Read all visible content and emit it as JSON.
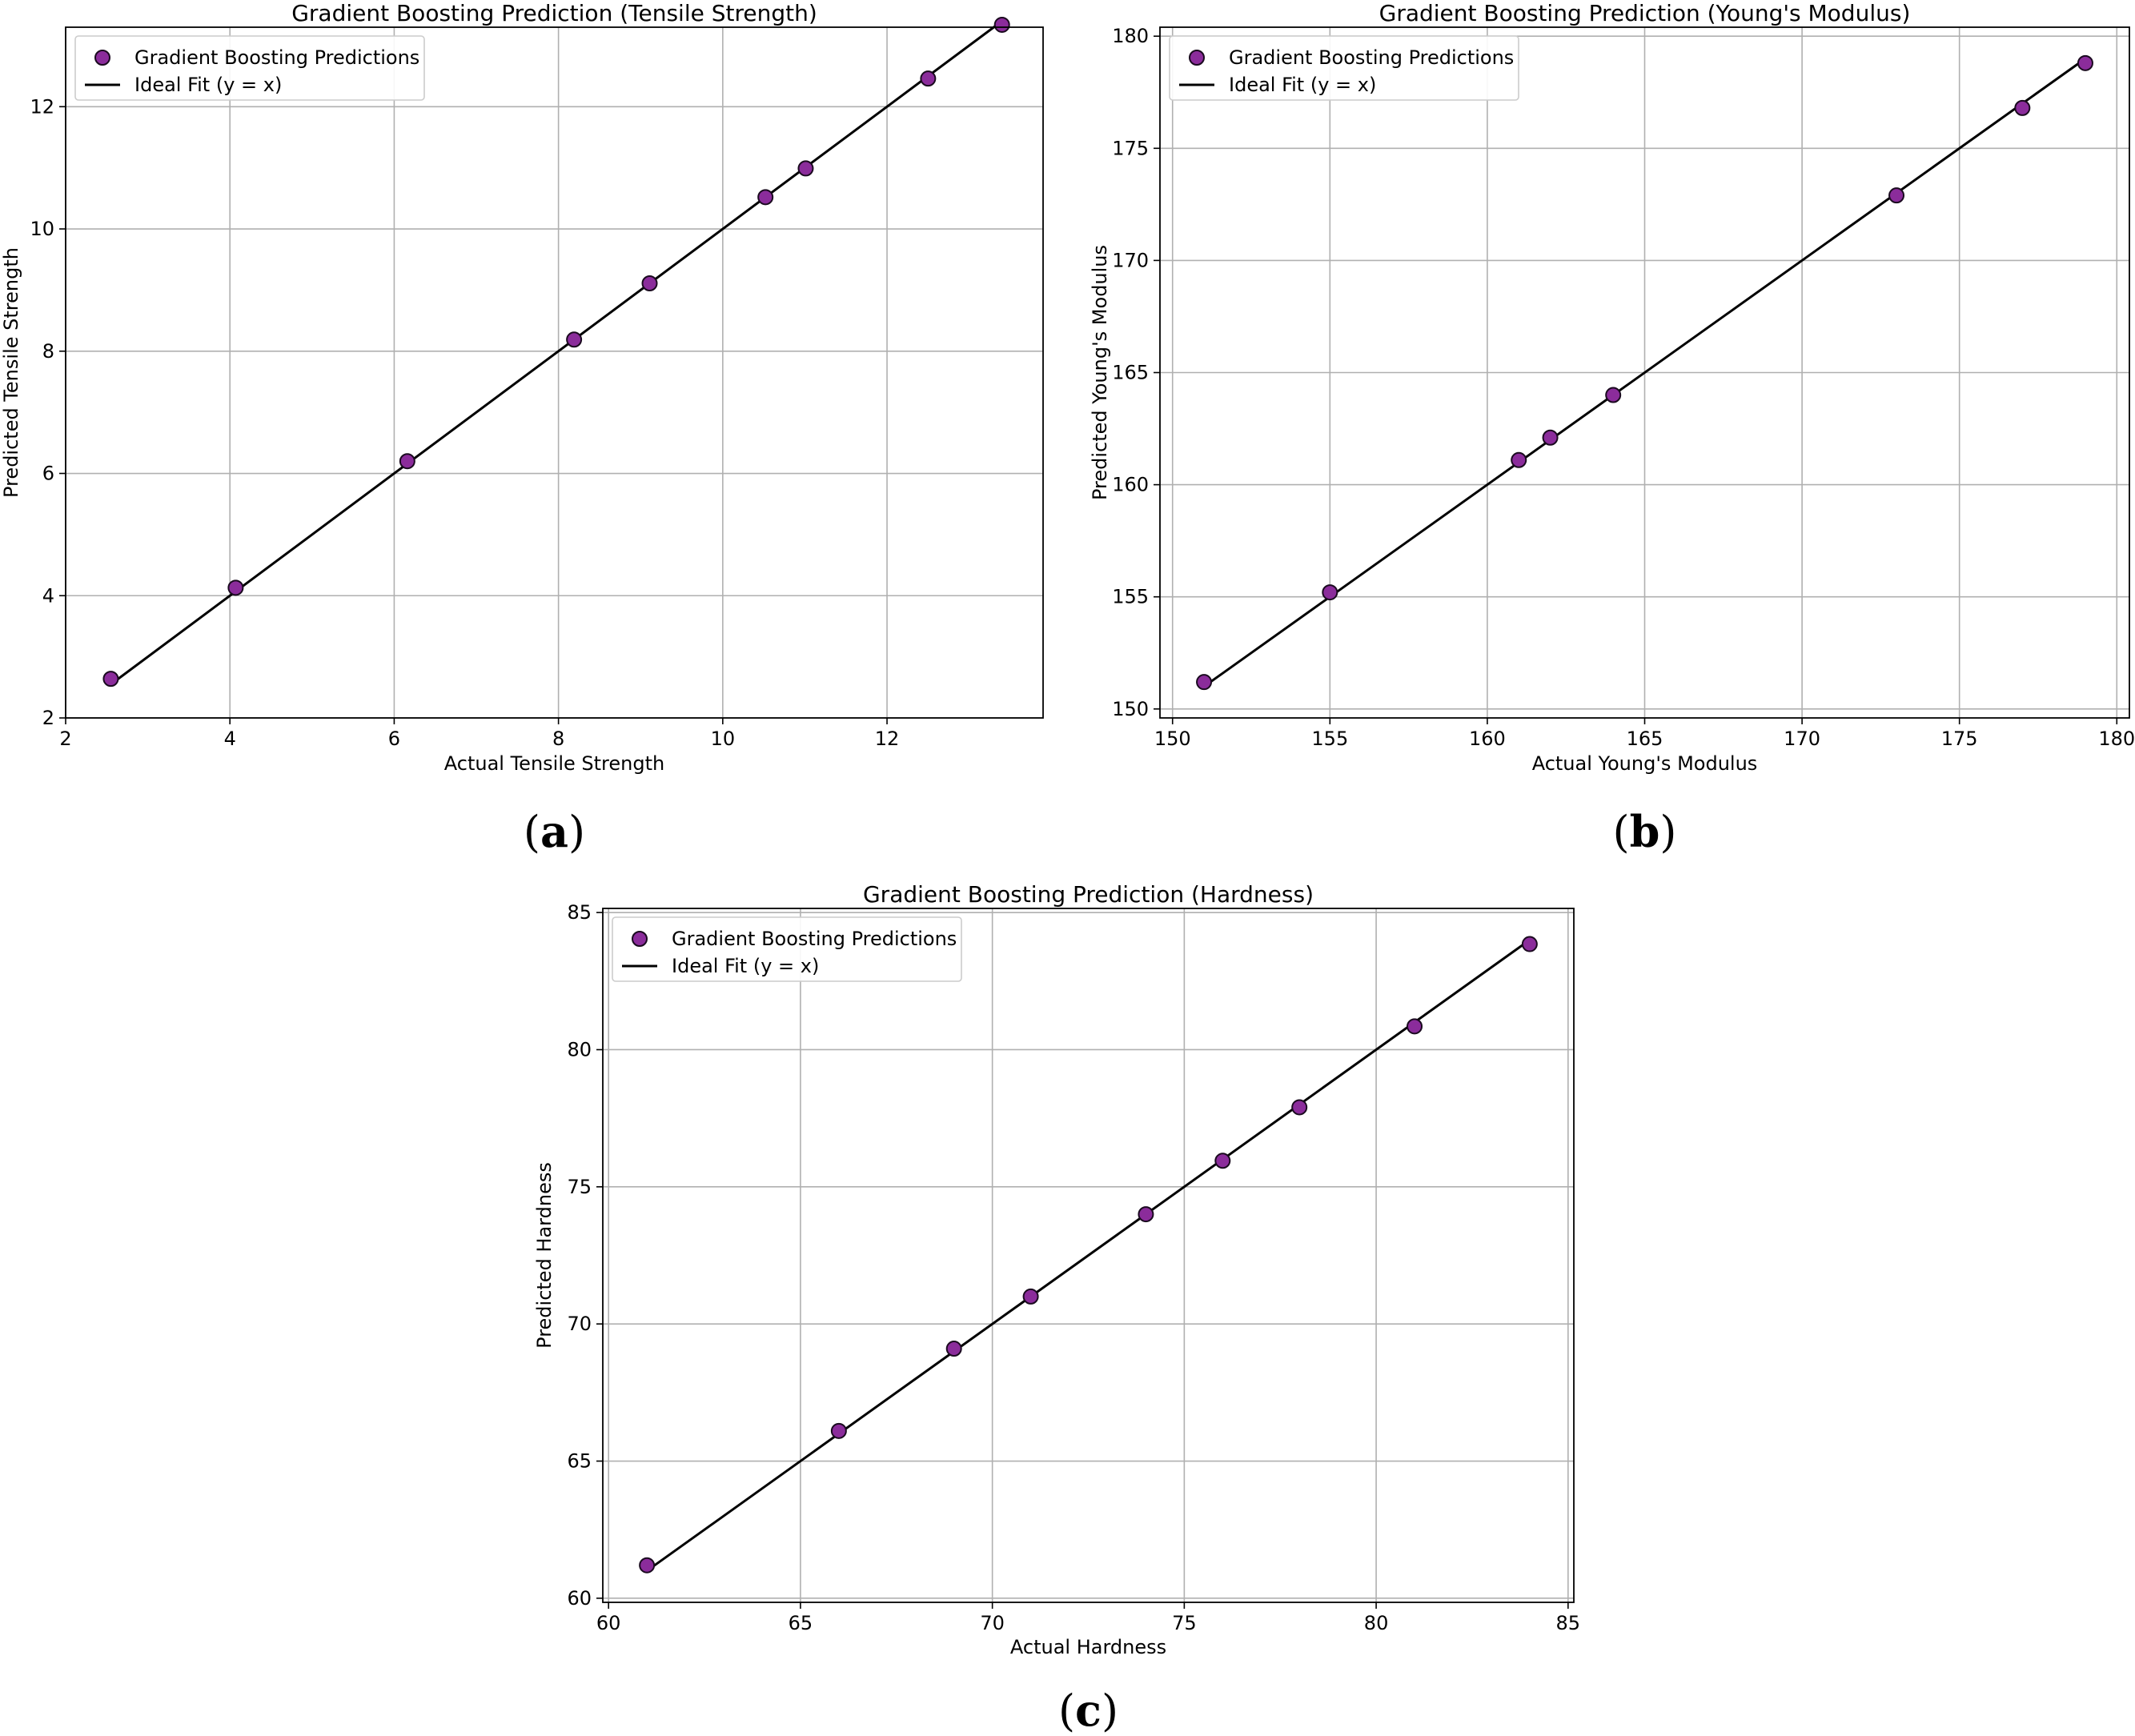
{
  "chart_data": [
    {
      "type": "scatter",
      "panel_label": "a",
      "title": "Gradient Boosting Prediction (Tensile Strength)",
      "xlabel": "Actual Tensile Strength",
      "ylabel": "Predicted Tensile Strength",
      "xlim": [
        2,
        13.9
      ],
      "ylim": [
        2,
        13.3
      ],
      "xticks": [
        2,
        4,
        6,
        8,
        10,
        12
      ],
      "yticks": [
        2,
        4,
        6,
        8,
        10,
        12
      ],
      "grid": true,
      "legend_position": "upper left",
      "series": [
        {
          "name": "Gradient Boosting Predictions",
          "kind": "scatter",
          "x": [
            2.55,
            4.07,
            6.16,
            8.19,
            9.11,
            10.52,
            11.01,
            12.5,
            13.4
          ],
          "y": [
            2.64,
            4.13,
            6.2,
            8.19,
            9.11,
            10.52,
            10.99,
            12.46,
            13.34
          ]
        },
        {
          "name": "Ideal Fit (y = x)",
          "kind": "line",
          "x": [
            2.55,
            13.4
          ],
          "y": [
            2.55,
            13.4
          ]
        }
      ]
    },
    {
      "type": "scatter",
      "panel_label": "b",
      "title": "Gradient Boosting Prediction (Young's Modulus)",
      "xlabel": "Actual Young's Modulus",
      "ylabel": "Predicted Young's Modulus",
      "xlim": [
        149.6,
        180.4
      ],
      "ylim": [
        149.6,
        180.4
      ],
      "xticks": [
        150,
        155,
        160,
        165,
        170,
        175,
        180
      ],
      "yticks": [
        150,
        155,
        160,
        165,
        170,
        175,
        180
      ],
      "grid": true,
      "legend_position": "upper left",
      "series": [
        {
          "name": "Gradient Boosting Predictions",
          "kind": "scatter",
          "x": [
            151,
            155,
            161,
            162,
            164,
            173,
            177,
            179
          ],
          "y": [
            151.2,
            155.2,
            161.1,
            162.1,
            164.0,
            172.9,
            176.8,
            178.8
          ]
        },
        {
          "name": "Ideal Fit (y = x)",
          "kind": "line",
          "x": [
            151,
            179
          ],
          "y": [
            151,
            179
          ]
        }
      ]
    },
    {
      "type": "scatter",
      "panel_label": "c",
      "title": "Gradient Boosting Prediction (Hardness)",
      "xlabel": "Actual Hardness",
      "ylabel": "Predicted Hardness",
      "xlim": [
        59.85,
        85.15
      ],
      "ylim": [
        59.85,
        85.15
      ],
      "xticks": [
        60,
        65,
        70,
        75,
        80,
        85
      ],
      "yticks": [
        60,
        65,
        70,
        75,
        80,
        85
      ],
      "grid": true,
      "legend_position": "upper left",
      "series": [
        {
          "name": "Gradient Boosting Predictions",
          "kind": "scatter",
          "x": [
            61,
            66,
            69,
            71,
            74,
            76,
            78,
            81,
            84
          ],
          "y": [
            61.2,
            66.1,
            69.1,
            71.0,
            74.0,
            75.95,
            77.9,
            80.85,
            83.85
          ]
        },
        {
          "name": "Ideal Fit (y = x)",
          "kind": "line",
          "x": [
            61,
            84
          ],
          "y": [
            61,
            84
          ]
        }
      ]
    }
  ],
  "colors": {
    "marker_fill": "#8b2c9b",
    "marker_edge": "#1a0a1f",
    "line": "#000000",
    "grid": "#b0b0b0",
    "axis": "#000000",
    "legend_border": "#cccccc"
  }
}
